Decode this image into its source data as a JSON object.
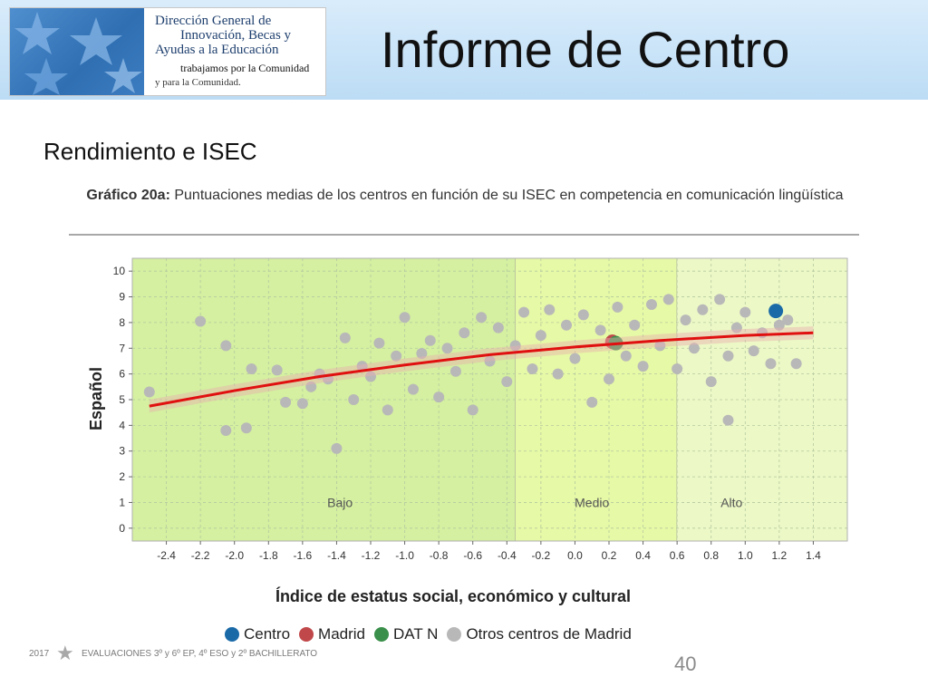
{
  "header": {
    "logo_lines": [
      "Dirección General de",
      "Innovación, Becas y",
      "Ayudas a la Educación",
      "trabajamos por la Comunidad",
      "y para la Comunidad."
    ],
    "title": "Informe de Centro"
  },
  "subtitle": "Rendimiento e ISEC",
  "chart_data": {
    "type": "scatter",
    "title_prefix": "Gráfico 20a:",
    "title": "Puntuaciones medias de los centros en función de su ISEC en competencia en comunicación lingüística",
    "xlabel": "Índice de estatus social, económico y cultural",
    "ylabel": "Español",
    "xlim": [
      -2.6,
      1.6
    ],
    "ylim": [
      -0.5,
      10.5
    ],
    "x_ticks": [
      "-2.4",
      "-2.2",
      "-2.0",
      "-1.8",
      "-1.6",
      "-1.4",
      "-1.2",
      "-1.0",
      "-0.8",
      "-0.6",
      "-0.4",
      "-0.2",
      "0.0",
      "0.2",
      "0.4",
      "0.6",
      "0.8",
      "1.0",
      "1.2",
      "1.4"
    ],
    "y_ticks": [
      "0",
      "1",
      "2",
      "3",
      "4",
      "5",
      "6",
      "7",
      "8",
      "9",
      "10"
    ],
    "regions": [
      {
        "label": "Bajo",
        "from": -2.6,
        "to": -0.35,
        "color": "#d4f0a0"
      },
      {
        "label": "Medio",
        "from": -0.35,
        "to": 0.6,
        "color": "#e6f9a6"
      },
      {
        "label": "Alto",
        "from": 0.6,
        "to": 1.6,
        "color": "#ecf8c6"
      }
    ],
    "trend": {
      "x": [
        -2.5,
        -2.0,
        -1.5,
        -1.0,
        -0.5,
        0.0,
        0.5,
        1.0,
        1.4
      ],
      "y": [
        4.75,
        5.35,
        5.9,
        6.35,
        6.75,
        7.05,
        7.3,
        7.5,
        7.6
      ],
      "color": "#e01010"
    },
    "series": [
      {
        "name": "Centro",
        "color": "#1a6aa8",
        "points": [
          {
            "x": 1.18,
            "y": 8.45
          }
        ]
      },
      {
        "name": "Madrid",
        "color": "#c0484a",
        "points": [
          {
            "x": 0.22,
            "y": 7.25
          }
        ]
      },
      {
        "name": "DAT N",
        "color": "#3a8f4a",
        "points": [
          {
            "x": 0.24,
            "y": 7.2
          }
        ]
      },
      {
        "name": "Otros centros de Madrid",
        "color": "#b8b8b8",
        "points": [
          {
            "x": -2.5,
            "y": 5.3
          },
          {
            "x": -2.2,
            "y": 8.05
          },
          {
            "x": -2.05,
            "y": 7.1
          },
          {
            "x": -2.05,
            "y": 3.8
          },
          {
            "x": -1.93,
            "y": 3.9
          },
          {
            "x": -1.9,
            "y": 6.2
          },
          {
            "x": -1.75,
            "y": 6.15
          },
          {
            "x": -1.7,
            "y": 4.9
          },
          {
            "x": -1.6,
            "y": 4.85
          },
          {
            "x": -1.55,
            "y": 5.5
          },
          {
            "x": -1.5,
            "y": 6.0
          },
          {
            "x": -1.45,
            "y": 5.8
          },
          {
            "x": -1.4,
            "y": 3.1
          },
          {
            "x": -1.35,
            "y": 7.4
          },
          {
            "x": -1.3,
            "y": 5.0
          },
          {
            "x": -1.25,
            "y": 6.3
          },
          {
            "x": -1.2,
            "y": 5.9
          },
          {
            "x": -1.15,
            "y": 7.2
          },
          {
            "x": -1.1,
            "y": 4.6
          },
          {
            "x": -1.05,
            "y": 6.7
          },
          {
            "x": -1.0,
            "y": 8.2
          },
          {
            "x": -0.95,
            "y": 5.4
          },
          {
            "x": -0.9,
            "y": 6.8
          },
          {
            "x": -0.85,
            "y": 7.3
          },
          {
            "x": -0.8,
            "y": 5.1
          },
          {
            "x": -0.75,
            "y": 7.0
          },
          {
            "x": -0.7,
            "y": 6.1
          },
          {
            "x": -0.65,
            "y": 7.6
          },
          {
            "x": -0.6,
            "y": 4.6
          },
          {
            "x": -0.55,
            "y": 8.2
          },
          {
            "x": -0.5,
            "y": 6.5
          },
          {
            "x": -0.45,
            "y": 7.8
          },
          {
            "x": -0.4,
            "y": 5.7
          },
          {
            "x": -0.35,
            "y": 7.1
          },
          {
            "x": -0.3,
            "y": 8.4
          },
          {
            "x": -0.25,
            "y": 6.2
          },
          {
            "x": -0.2,
            "y": 7.5
          },
          {
            "x": -0.15,
            "y": 8.5
          },
          {
            "x": -0.1,
            "y": 6.0
          },
          {
            "x": -0.05,
            "y": 7.9
          },
          {
            "x": 0.0,
            "y": 6.6
          },
          {
            "x": 0.05,
            "y": 8.3
          },
          {
            "x": 0.1,
            "y": 4.9
          },
          {
            "x": 0.15,
            "y": 7.7
          },
          {
            "x": 0.2,
            "y": 5.8
          },
          {
            "x": 0.25,
            "y": 8.6
          },
          {
            "x": 0.3,
            "y": 6.7
          },
          {
            "x": 0.35,
            "y": 7.9
          },
          {
            "x": 0.4,
            "y": 6.3
          },
          {
            "x": 0.45,
            "y": 8.7
          },
          {
            "x": 0.5,
            "y": 7.1
          },
          {
            "x": 0.55,
            "y": 8.9
          },
          {
            "x": 0.6,
            "y": 6.2
          },
          {
            "x": 0.65,
            "y": 8.1
          },
          {
            "x": 0.7,
            "y": 7.0
          },
          {
            "x": 0.75,
            "y": 8.5
          },
          {
            "x": 0.8,
            "y": 5.7
          },
          {
            "x": 0.85,
            "y": 8.9
          },
          {
            "x": 0.9,
            "y": 6.7
          },
          {
            "x": 0.95,
            "y": 7.8
          },
          {
            "x": 1.0,
            "y": 8.4
          },
          {
            "x": 1.05,
            "y": 6.9
          },
          {
            "x": 1.1,
            "y": 7.6
          },
          {
            "x": 1.15,
            "y": 6.4
          },
          {
            "x": 1.2,
            "y": 7.9
          },
          {
            "x": 1.25,
            "y": 8.1
          },
          {
            "x": 1.3,
            "y": 6.4
          },
          {
            "x": 0.9,
            "y": 4.2
          }
        ]
      }
    ],
    "legend_position": "bottom",
    "grid": true
  },
  "footer": {
    "year": "2017",
    "text": "EVALUACIONES  3º y 6º EP, 4º ESO y 2º BACHILLERATO",
    "page": "40"
  }
}
